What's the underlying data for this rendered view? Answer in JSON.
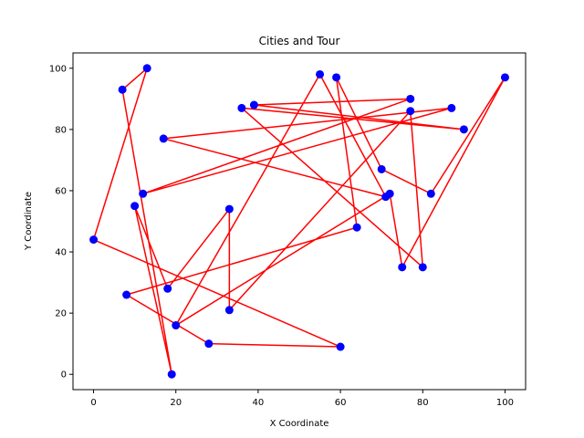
{
  "chart_data": {
    "type": "scatter",
    "title": "Cities and Tour",
    "xlabel": "X Coordinate",
    "ylabel": "Y Coordinate",
    "xlim": [
      -5,
      105
    ],
    "ylim": [
      -5,
      105
    ],
    "xticks": [
      0,
      20,
      40,
      60,
      80,
      100
    ],
    "yticks": [
      0,
      20,
      40,
      60,
      80,
      100
    ],
    "grid": false,
    "point_color": "#0000ff",
    "line_color": "#ff0000",
    "tour": [
      [
        0,
        44
      ],
      [
        13,
        100
      ],
      [
        7,
        93
      ],
      [
        19,
        0
      ],
      [
        10,
        55
      ],
      [
        18,
        28
      ],
      [
        33,
        54
      ],
      [
        33,
        21
      ],
      [
        77,
        86
      ],
      [
        80,
        35
      ],
      [
        36,
        87
      ],
      [
        90,
        80
      ],
      [
        39,
        88
      ],
      [
        77,
        90
      ],
      [
        12,
        59
      ],
      [
        87,
        87
      ],
      [
        17,
        77
      ],
      [
        71,
        58
      ],
      [
        55,
        98
      ],
      [
        20,
        16
      ],
      [
        72,
        59
      ],
      [
        75,
        35
      ],
      [
        100,
        97
      ],
      [
        82,
        59
      ],
      [
        70,
        67
      ],
      [
        59,
        97
      ],
      [
        64,
        48
      ],
      [
        8,
        26
      ],
      [
        28,
        10
      ],
      [
        60,
        9
      ],
      [
        0,
        44
      ]
    ]
  }
}
